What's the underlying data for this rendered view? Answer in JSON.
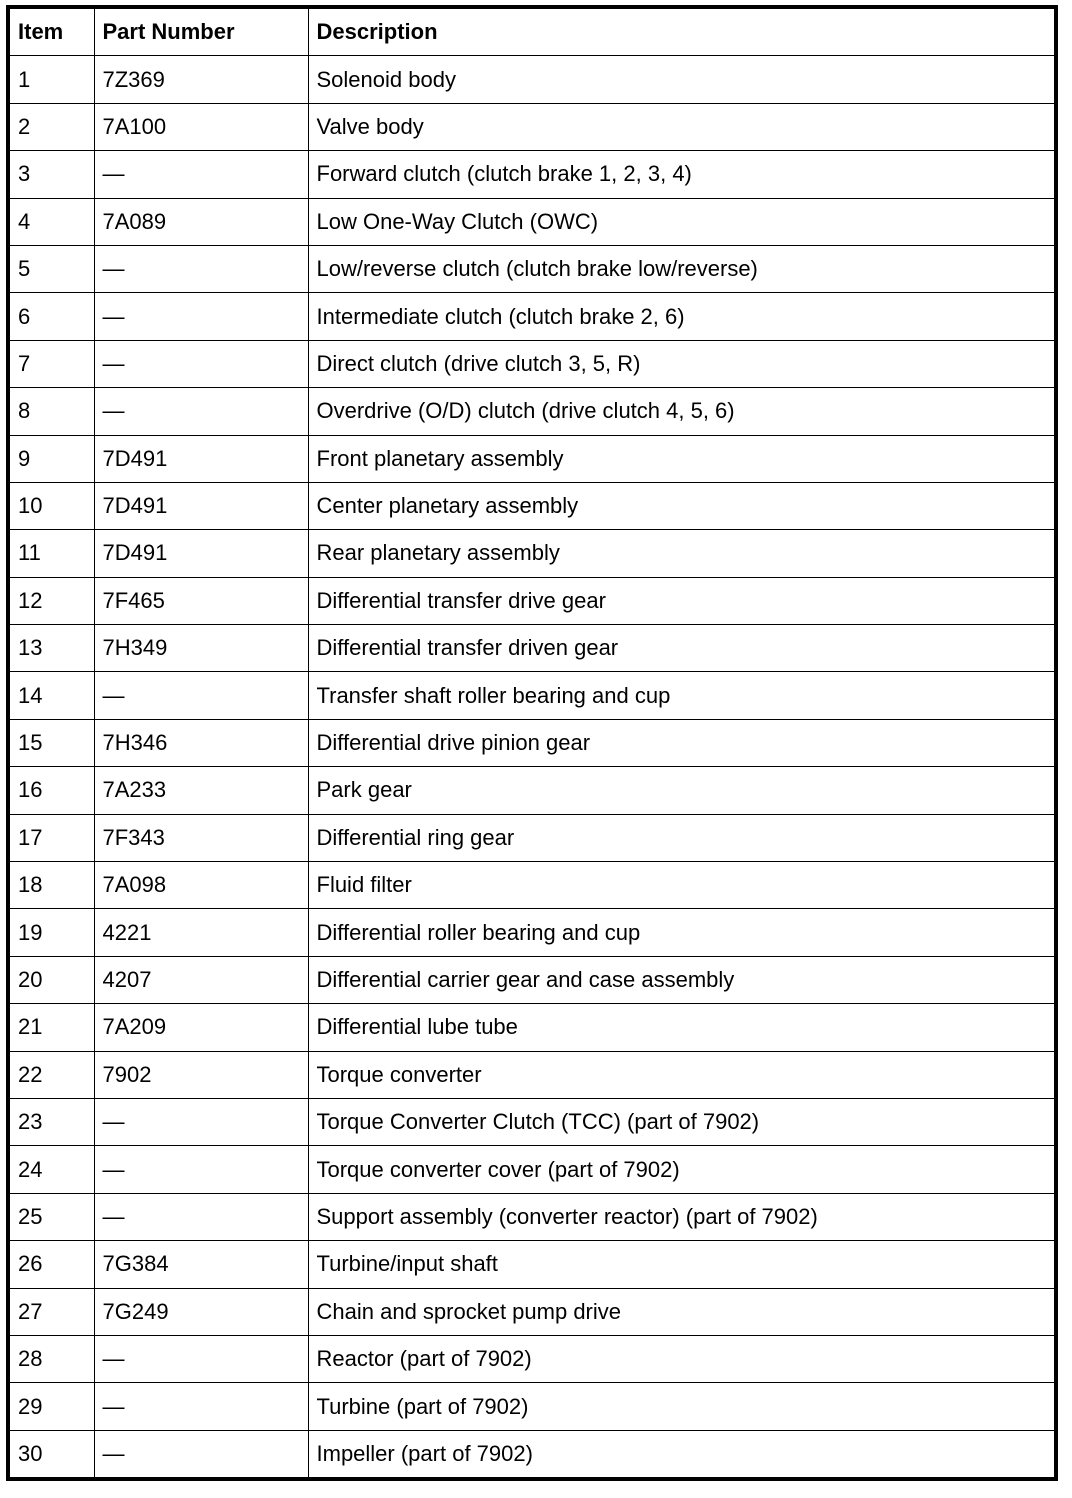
{
  "headers": {
    "item": "Item",
    "part_number": "Part Number",
    "description": "Description"
  },
  "rows": [
    {
      "item": "1",
      "part": "7Z369",
      "desc": "Solenoid body"
    },
    {
      "item": "2",
      "part": "7A100",
      "desc": "Valve body"
    },
    {
      "item": "3",
      "part": "—",
      "desc": "Forward clutch (clutch brake 1, 2, 3, 4)"
    },
    {
      "item": "4",
      "part": "7A089",
      "desc": "Low One-Way Clutch (OWC)"
    },
    {
      "item": "5",
      "part": "—",
      "desc": "Low/reverse clutch (clutch brake low/reverse)"
    },
    {
      "item": "6",
      "part": "—",
      "desc": "Intermediate clutch (clutch brake 2, 6)"
    },
    {
      "item": "7",
      "part": "—",
      "desc": "Direct clutch (drive clutch 3, 5, R)"
    },
    {
      "item": "8",
      "part": "—",
      "desc": "Overdrive (O/D) clutch (drive clutch 4, 5, 6)"
    },
    {
      "item": "9",
      "part": "7D491",
      "desc": "Front planetary assembly"
    },
    {
      "item": "10",
      "part": "7D491",
      "desc": "Center planetary assembly"
    },
    {
      "item": "11",
      "part": "7D491",
      "desc": "Rear planetary assembly"
    },
    {
      "item": "12",
      "part": "7F465",
      "desc": "Differential transfer drive gear"
    },
    {
      "item": "13",
      "part": "7H349",
      "desc": "Differential transfer driven gear"
    },
    {
      "item": "14",
      "part": "—",
      "desc": "Transfer shaft roller bearing and cup"
    },
    {
      "item": "15",
      "part": "7H346",
      "desc": "Differential drive pinion gear"
    },
    {
      "item": "16",
      "part": "7A233",
      "desc": "Park gear"
    },
    {
      "item": "17",
      "part": "7F343",
      "desc": "Differential ring gear"
    },
    {
      "item": "18",
      "part": "7A098",
      "desc": "Fluid filter"
    },
    {
      "item": "19",
      "part": "4221",
      "desc": "Differential roller bearing and cup"
    },
    {
      "item": "20",
      "part": "4207",
      "desc": "Differential carrier gear and case assembly"
    },
    {
      "item": "21",
      "part": "7A209",
      "desc": "Differential lube tube"
    },
    {
      "item": "22",
      "part": "7902",
      "desc": "Torque converter"
    },
    {
      "item": "23",
      "part": "—",
      "desc": "Torque Converter Clutch (TCC) (part of 7902)"
    },
    {
      "item": "24",
      "part": "—",
      "desc": "Torque converter cover (part of 7902)"
    },
    {
      "item": "25",
      "part": "—",
      "desc": "Support assembly (converter reactor) (part of 7902)"
    },
    {
      "item": "26",
      "part": "7G384",
      "desc": "Turbine/input shaft"
    },
    {
      "item": "27",
      "part": "7G249",
      "desc": "Chain and sprocket pump drive"
    },
    {
      "item": "28",
      "part": "—",
      "desc": "Reactor (part of 7902)"
    },
    {
      "item": "29",
      "part": "—",
      "desc": "Turbine (part of 7902)"
    },
    {
      "item": "30",
      "part": "—",
      "desc": "Impeller (part of 7902)"
    }
  ]
}
